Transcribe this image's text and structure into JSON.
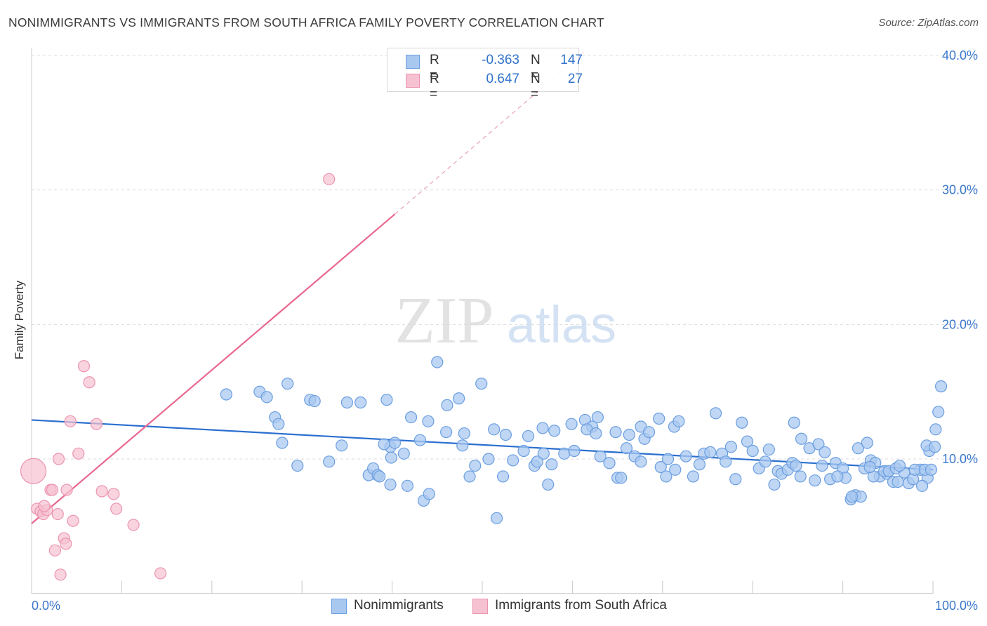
{
  "title": "NONIMMIGRANTS VS IMMIGRANTS FROM SOUTH AFRICA FAMILY POVERTY CORRELATION CHART",
  "source": "Source: ZipAtlas.com",
  "watermark": {
    "zip": "ZIP",
    "atlas": "atlas"
  },
  "colors": {
    "blue_fill": "#a9c8f0",
    "blue_stroke": "#6a9ee0",
    "blue_line": "#2a6fd0",
    "pink_fill": "#f6c2d2",
    "pink_stroke": "#ec93b0",
    "pink_line": "#e8688f",
    "axis_text": "#3b78cc",
    "grid": "#dcdcdc"
  },
  "legend": {
    "rows": [
      {
        "r_label": "R =",
        "r_value": "-0.363",
        "n_label": "N =",
        "n_value": "147"
      },
      {
        "r_label": "R =",
        "r_value": "0.647",
        "n_label": "N =",
        "n_value": "27"
      }
    ]
  },
  "bottom_legend": [
    "Nonimmigrants",
    "Immigrants from South Africa"
  ],
  "chart_data": {
    "type": "scatter",
    "title": "NONIMMIGRANTS VS IMMIGRANTS FROM SOUTH AFRICA FAMILY POVERTY CORRELATION CHART",
    "xlabel": "",
    "ylabel": "Family Poverty",
    "xlim": [
      0,
      100
    ],
    "ylim": [
      0,
      41.5
    ],
    "x_tick_labels": [
      "0.0%",
      "100.0%"
    ],
    "y_ticks": [
      10,
      20,
      30,
      40
    ],
    "y_tick_labels": [
      "10.0%",
      "20.0%",
      "30.0%",
      "40.0%"
    ],
    "grid": "horizontal dashed",
    "legend_placement": "top-center",
    "series": [
      {
        "name": "Nonimmigrants",
        "stats": {
          "R": -0.363,
          "N": 147
        },
        "trend": {
          "x": [
            0,
            100
          ],
          "y": [
            12.9,
            9.2
          ]
        },
        "points": [
          [
            21.6,
            14.8
          ],
          [
            25.3,
            15.0
          ],
          [
            26.1,
            14.6
          ],
          [
            27.0,
            13.1
          ],
          [
            27.8,
            11.2
          ],
          [
            28.4,
            15.6
          ],
          [
            27.4,
            12.6
          ],
          [
            29.5,
            9.5
          ],
          [
            30.9,
            14.4
          ],
          [
            31.4,
            14.3
          ],
          [
            33.0,
            9.8
          ],
          [
            35.0,
            14.2
          ],
          [
            34.4,
            11.0
          ],
          [
            36.5,
            14.2
          ],
          [
            37.4,
            8.8
          ],
          [
            37.9,
            9.3
          ],
          [
            38.4,
            8.8
          ],
          [
            39.4,
            14.4
          ],
          [
            39.8,
            10.9
          ],
          [
            40.3,
            11.2
          ],
          [
            41.3,
            10.4
          ],
          [
            42.1,
            13.1
          ],
          [
            41.7,
            8.0
          ],
          [
            43.1,
            11.4
          ],
          [
            43.5,
            6.9
          ],
          [
            39.8,
            8.1
          ],
          [
            38.6,
            8.7
          ],
          [
            39.1,
            11.1
          ],
          [
            39.9,
            10.1
          ],
          [
            44.0,
            12.8
          ],
          [
            44.1,
            7.4
          ],
          [
            45.0,
            17.2
          ],
          [
            46.0,
            12.0
          ],
          [
            46.1,
            14.0
          ],
          [
            47.4,
            14.5
          ],
          [
            47.8,
            11.0
          ],
          [
            48.0,
            11.9
          ],
          [
            48.6,
            8.7
          ],
          [
            49.2,
            9.5
          ],
          [
            49.9,
            15.6
          ],
          [
            50.7,
            10.0
          ],
          [
            51.3,
            12.2
          ],
          [
            51.6,
            5.6
          ],
          [
            52.3,
            8.7
          ],
          [
            52.6,
            11.8
          ],
          [
            53.4,
            9.9
          ],
          [
            54.6,
            10.6
          ],
          [
            55.1,
            11.7
          ],
          [
            55.8,
            9.5
          ],
          [
            56.1,
            9.8
          ],
          [
            56.7,
            12.3
          ],
          [
            56.8,
            10.4
          ],
          [
            57.3,
            8.1
          ],
          [
            57.7,
            9.6
          ],
          [
            58.0,
            12.1
          ],
          [
            59.1,
            10.4
          ],
          [
            59.9,
            12.6
          ],
          [
            60.2,
            10.6
          ],
          [
            61.4,
            12.9
          ],
          [
            62.2,
            12.4
          ],
          [
            61.6,
            12.2
          ],
          [
            62.6,
            11.9
          ],
          [
            62.8,
            13.1
          ],
          [
            63.1,
            10.2
          ],
          [
            64.1,
            9.7
          ],
          [
            64.8,
            12.0
          ],
          [
            65.0,
            8.6
          ],
          [
            65.4,
            8.6
          ],
          [
            66.0,
            10.8
          ],
          [
            66.3,
            11.8
          ],
          [
            66.9,
            10.2
          ],
          [
            67.6,
            12.4
          ],
          [
            67.6,
            9.8
          ],
          [
            68.0,
            11.5
          ],
          [
            68.5,
            12.0
          ],
          [
            69.6,
            13.0
          ],
          [
            69.8,
            9.4
          ],
          [
            70.4,
            8.7
          ],
          [
            70.6,
            10.0
          ],
          [
            71.3,
            12.4
          ],
          [
            71.4,
            9.2
          ],
          [
            71.8,
            12.8
          ],
          [
            72.6,
            10.2
          ],
          [
            73.4,
            8.7
          ],
          [
            74.1,
            9.6
          ],
          [
            74.6,
            10.4
          ],
          [
            75.3,
            10.5
          ],
          [
            75.9,
            13.4
          ],
          [
            76.6,
            10.4
          ],
          [
            77.0,
            9.8
          ],
          [
            77.6,
            10.9
          ],
          [
            78.1,
            8.5
          ],
          [
            78.8,
            12.7
          ],
          [
            79.4,
            11.3
          ],
          [
            80.0,
            10.6
          ],
          [
            80.7,
            9.3
          ],
          [
            81.8,
            10.7
          ],
          [
            81.4,
            9.8
          ],
          [
            82.4,
            8.1
          ],
          [
            82.8,
            9.1
          ],
          [
            83.2,
            8.9
          ],
          [
            83.9,
            9.2
          ],
          [
            84.4,
            9.7
          ],
          [
            84.8,
            9.5
          ],
          [
            85.3,
            8.7
          ],
          [
            86.3,
            10.8
          ],
          [
            86.9,
            8.4
          ],
          [
            87.7,
            9.5
          ],
          [
            88.6,
            8.5
          ],
          [
            89.2,
            9.7
          ],
          [
            90.0,
            9.3
          ],
          [
            90.3,
            8.6
          ],
          [
            90.9,
            7.0
          ],
          [
            91.4,
            7.3
          ],
          [
            92.0,
            7.2
          ],
          [
            92.4,
            9.3
          ],
          [
            93.1,
            9.9
          ],
          [
            93.6,
            9.7
          ],
          [
            94.1,
            8.7
          ],
          [
            94.9,
            8.9
          ],
          [
            95.6,
            8.3
          ],
          [
            96.1,
            8.3
          ],
          [
            96.8,
            9.0
          ],
          [
            97.3,
            8.2
          ],
          [
            97.8,
            8.5
          ],
          [
            98.6,
            9.2
          ],
          [
            99.4,
            8.6
          ],
          [
            98.8,
            8.0
          ],
          [
            93.4,
            8.7
          ],
          [
            93.0,
            9.4
          ],
          [
            94.6,
            9.1
          ],
          [
            95.1,
            9.1
          ],
          [
            95.9,
            9.3
          ],
          [
            98.0,
            9.2
          ],
          [
            99.1,
            9.2
          ],
          [
            99.6,
            10.6
          ],
          [
            99.8,
            9.2
          ],
          [
            100.3,
            12.2
          ],
          [
            100.6,
            13.5
          ],
          [
            100.9,
            15.4
          ],
          [
            99.3,
            11.0
          ],
          [
            100.2,
            10.9
          ],
          [
            91.7,
            10.8
          ],
          [
            92.7,
            11.2
          ],
          [
            85.4,
            11.5
          ],
          [
            84.6,
            12.7
          ],
          [
            87.3,
            11.1
          ],
          [
            88.0,
            10.5
          ],
          [
            89.4,
            8.7
          ],
          [
            91.0,
            7.2
          ],
          [
            96.3,
            9.5
          ]
        ]
      },
      {
        "name": "Immigrants from South Africa",
        "stats": {
          "R": 0.647,
          "N": 27
        },
        "trend": {
          "x": [
            0,
            40.3
          ],
          "y": [
            5.2,
            28.2
          ]
        },
        "trend_dashed": {
          "x": [
            40.3,
            61.2
          ],
          "y": [
            28.2,
            40.2
          ]
        },
        "points": [
          [
            0.2,
            9.1
          ],
          [
            0.6,
            6.3
          ],
          [
            1.0,
            6.1
          ],
          [
            1.3,
            5.9
          ],
          [
            1.7,
            6.2
          ],
          [
            2.1,
            7.7
          ],
          [
            2.3,
            7.7
          ],
          [
            2.6,
            3.2
          ],
          [
            2.9,
            5.9
          ],
          [
            3.0,
            10.0
          ],
          [
            3.2,
            1.4
          ],
          [
            3.6,
            4.1
          ],
          [
            3.8,
            3.7
          ],
          [
            3.9,
            7.7
          ],
          [
            4.3,
            12.8
          ],
          [
            4.6,
            5.4
          ],
          [
            5.2,
            10.4
          ],
          [
            5.8,
            16.9
          ],
          [
            6.4,
            15.7
          ],
          [
            7.2,
            12.6
          ],
          [
            7.8,
            7.6
          ],
          [
            9.1,
            7.4
          ],
          [
            9.4,
            6.3
          ],
          [
            11.3,
            5.1
          ],
          [
            14.3,
            1.5
          ],
          [
            33.0,
            30.8
          ],
          [
            1.4,
            6.5
          ]
        ]
      }
    ]
  }
}
